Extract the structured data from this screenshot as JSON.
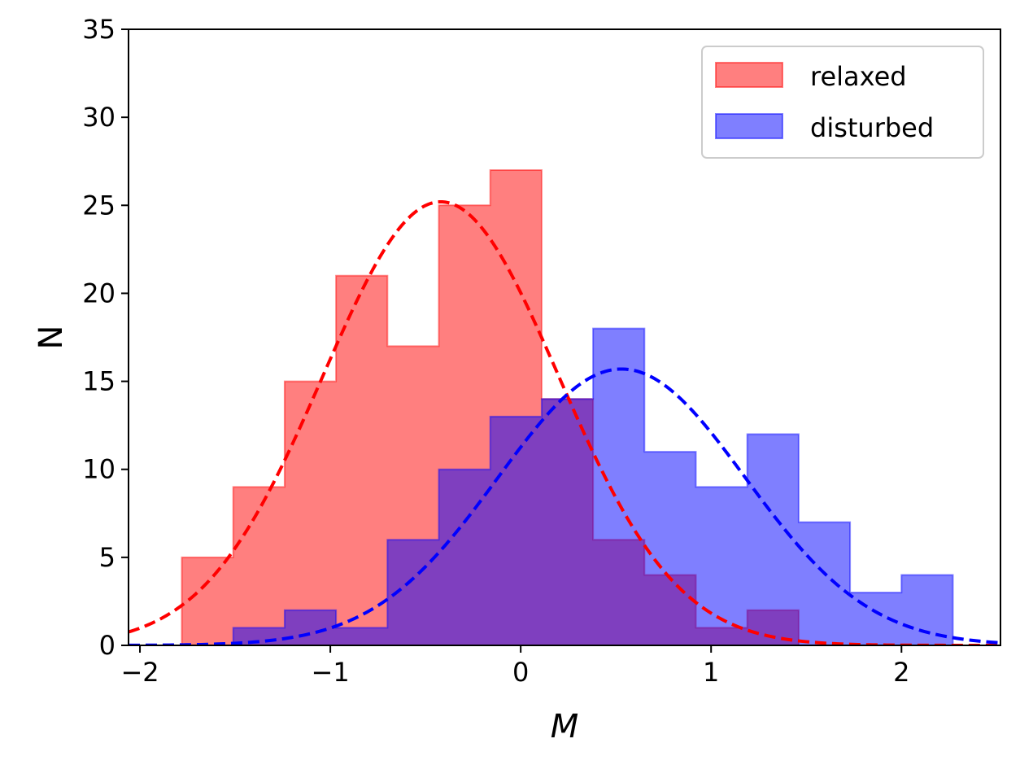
{
  "chart_data": {
    "type": "histogram",
    "xlabel": "M",
    "ylabel": "N",
    "xlim": [
      -2.06,
      2.52
    ],
    "ylim": [
      0,
      35
    ],
    "x_ticks": [
      -2,
      -1,
      0,
      1,
      2
    ],
    "x_tick_labels": [
      "−2",
      "−1",
      "0",
      "1",
      "2"
    ],
    "y_ticks": [
      0,
      5,
      10,
      15,
      20,
      25,
      30,
      35
    ],
    "y_tick_labels": [
      "0",
      "5",
      "10",
      "15",
      "20",
      "25",
      "30",
      "35"
    ],
    "grid": false,
    "legend_position": "top-right",
    "series": [
      {
        "name": "relaxed",
        "color": "#ff0000",
        "fill_alpha": 0.5,
        "bin_edges": [
          -1.78,
          -1.51,
          -1.24,
          -0.97,
          -0.7,
          -0.43,
          -0.16,
          0.11,
          0.38,
          0.65,
          0.92,
          1.19,
          1.46
        ],
        "counts": [
          5,
          9,
          15,
          21,
          17,
          25,
          27,
          14,
          6,
          4,
          1,
          2
        ],
        "fit": {
          "style": "dashed",
          "mean": -0.42,
          "sigma": 0.62,
          "amplitude": 25.2
        }
      },
      {
        "name": "disturbed",
        "color": "#0000ff",
        "fill_alpha": 0.5,
        "bin_edges": [
          -1.51,
          -1.24,
          -0.97,
          -0.7,
          -0.43,
          -0.16,
          0.11,
          0.38,
          0.65,
          0.92,
          1.19,
          1.46,
          1.73,
          2.0,
          2.27
        ],
        "counts": [
          1,
          2,
          1,
          6,
          10,
          13,
          14,
          18,
          11,
          9,
          12,
          7,
          3,
          4
        ],
        "fit": {
          "style": "dashed",
          "mean": 0.53,
          "sigma": 0.65,
          "amplitude": 15.7
        }
      }
    ]
  }
}
